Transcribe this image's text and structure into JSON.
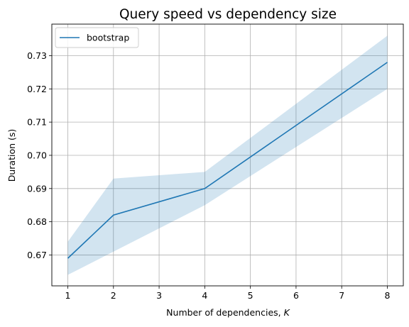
{
  "chart_data": {
    "type": "line",
    "title": "Query speed vs dependency size",
    "xlabel": "Number of dependencies, ",
    "xlabel_var": "K",
    "ylabel": "Duration (s)",
    "x": [
      1,
      2,
      4,
      8
    ],
    "series": [
      {
        "name": "bootstrap",
        "color": "#1f77b4",
        "values": [
          0.669,
          0.682,
          0.69,
          0.728
        ],
        "lower": [
          0.664,
          0.671,
          0.685,
          0.72
        ],
        "upper": [
          0.674,
          0.693,
          0.695,
          0.736
        ]
      }
    ],
    "band_color": "#1f77b4",
    "band_opacity": 0.2,
    "xlim": [
      0.65,
      8.35
    ],
    "ylim": [
      0.6607,
      0.7395
    ],
    "xticks": [
      1,
      2,
      3,
      4,
      5,
      6,
      7,
      8
    ],
    "yticks": [
      0.67,
      0.68,
      0.69,
      0.7,
      0.71,
      0.72,
      0.73
    ],
    "ytick_labels": [
      "0.67",
      "0.68",
      "0.69",
      "0.70",
      "0.71",
      "0.72",
      "0.73"
    ],
    "grid": true,
    "legend_position": "upper-left"
  }
}
